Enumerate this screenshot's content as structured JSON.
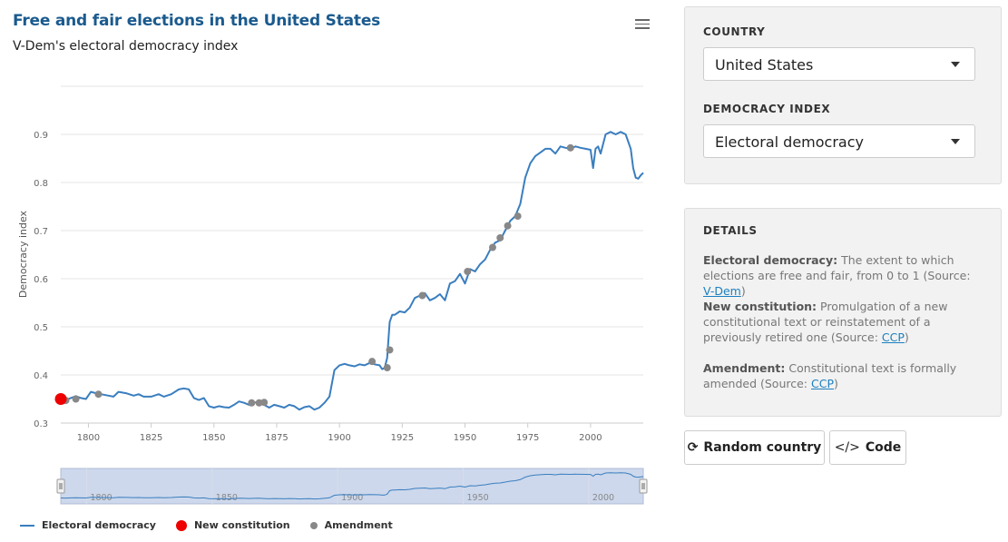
{
  "header": {
    "title": "Free and fair elections in the United States",
    "subtitle": "V-Dem's electoral democracy index"
  },
  "controls": {
    "country_label": "COUNTRY",
    "country_value": "United States",
    "index_label": "DEMOCRACY INDEX",
    "index_value": "Electoral democracy"
  },
  "details": {
    "heading": "DETAILS",
    "items": [
      {
        "term": "Electoral democracy:",
        "text": "The extent to which elections are free and fair, from 0 to 1 (Source: ",
        "link": "V-Dem",
        "end": ")"
      },
      {
        "term": "New constitution:",
        "text": "Promulgation of a new constitutional text or reinstatement of a previously retired one (Source: ",
        "link": "CCP",
        "end": ")"
      },
      {
        "term": "Amendment:",
        "text": "Constitutional text is formally amended (Source: ",
        "link": "CCP",
        "end": ")"
      }
    ]
  },
  "buttons": {
    "random": "Random country",
    "code": "Code"
  },
  "colors": {
    "title": "#1a5a8e",
    "line": "#3a7ebf",
    "new_constitution": "#ee0000",
    "amendment": "#888888",
    "navigator_fill": "#c8d4ea"
  },
  "chart_data": {
    "type": "line",
    "title": "Free and fair elections in the United States",
    "subtitle": "V-Dem's electoral democracy index",
    "ylabel": "Democracy index",
    "xlabel": "",
    "xlim": [
      1789,
      2021
    ],
    "ylim": [
      0.3,
      1.0
    ],
    "y_ticks": [
      0.3,
      0.4,
      0.5,
      0.6,
      0.7,
      0.8,
      0.9
    ],
    "x_ticks": [
      1800,
      1825,
      1850,
      1875,
      1900,
      1925,
      1950,
      1975,
      2000
    ],
    "navigator_ticks": [
      1800,
      1850,
      1900,
      1950,
      2000
    ],
    "grid": true,
    "legend_position": "bottom-left",
    "series": [
      {
        "name": "Electoral democracy",
        "x": [
          1789,
          1791,
          1793,
          1795,
          1797,
          1799,
          1801,
          1803,
          1805,
          1808,
          1810,
          1812,
          1815,
          1818,
          1820,
          1822,
          1825,
          1828,
          1830,
          1833,
          1836,
          1838,
          1840,
          1842,
          1844,
          1846,
          1848,
          1850,
          1852,
          1854,
          1856,
          1858,
          1860,
          1862,
          1864,
          1866,
          1868,
          1870,
          1872,
          1874,
          1876,
          1878,
          1880,
          1882,
          1884,
          1886,
          1888,
          1890,
          1892,
          1894,
          1896,
          1898,
          1900,
          1902,
          1904,
          1906,
          1908,
          1910,
          1912,
          1914,
          1916,
          1917,
          1918,
          1919,
          1920,
          1921,
          1922,
          1924,
          1926,
          1928,
          1930,
          1932,
          1934,
          1936,
          1938,
          1940,
          1942,
          1944,
          1946,
          1948,
          1950,
          1952,
          1954,
          1956,
          1958,
          1960,
          1962,
          1964,
          1966,
          1968,
          1970,
          1972,
          1974,
          1976,
          1978,
          1980,
          1982,
          1984,
          1986,
          1988,
          1990,
          1992,
          1994,
          1996,
          1998,
          2000,
          2001,
          2002,
          2003,
          2004,
          2006,
          2008,
          2010,
          2012,
          2014,
          2016,
          2017,
          2018,
          2019,
          2020,
          2021
        ],
        "values": [
          0.35,
          0.348,
          0.352,
          0.356,
          0.352,
          0.35,
          0.365,
          0.362,
          0.36,
          0.357,
          0.355,
          0.365,
          0.362,
          0.357,
          0.36,
          0.355,
          0.355,
          0.36,
          0.355,
          0.36,
          0.37,
          0.372,
          0.37,
          0.352,
          0.348,
          0.352,
          0.335,
          0.332,
          0.335,
          0.333,
          0.332,
          0.338,
          0.345,
          0.342,
          0.338,
          0.342,
          0.345,
          0.338,
          0.332,
          0.338,
          0.335,
          0.332,
          0.338,
          0.335,
          0.328,
          0.333,
          0.335,
          0.328,
          0.332,
          0.342,
          0.355,
          0.41,
          0.42,
          0.423,
          0.42,
          0.418,
          0.422,
          0.42,
          0.425,
          0.422,
          0.42,
          0.412,
          0.415,
          0.435,
          0.51,
          0.525,
          0.525,
          0.532,
          0.53,
          0.54,
          0.56,
          0.565,
          0.57,
          0.555,
          0.56,
          0.568,
          0.555,
          0.59,
          0.595,
          0.61,
          0.59,
          0.62,
          0.615,
          0.63,
          0.64,
          0.66,
          0.675,
          0.68,
          0.7,
          0.72,
          0.73,
          0.755,
          0.81,
          0.84,
          0.855,
          0.862,
          0.87,
          0.87,
          0.86,
          0.875,
          0.872,
          0.87,
          0.875,
          0.872,
          0.87,
          0.868,
          0.83,
          0.87,
          0.875,
          0.86,
          0.9,
          0.905,
          0.9,
          0.905,
          0.9,
          0.87,
          0.83,
          0.81,
          0.808,
          0.815,
          0.82
        ]
      },
      {
        "name": "New constitution",
        "x": [
          1789
        ],
        "values": [
          0.35
        ]
      },
      {
        "name": "Amendment",
        "x": [
          1791,
          1795,
          1804,
          1865,
          1868,
          1870,
          1913,
          1919,
          1920,
          1933,
          1951,
          1961,
          1964,
          1967,
          1971,
          1992
        ],
        "values": [
          0.347,
          0.35,
          0.36,
          0.342,
          0.342,
          0.343,
          0.428,
          0.415,
          0.452,
          0.565,
          0.615,
          0.665,
          0.685,
          0.71,
          0.73,
          0.872
        ]
      }
    ]
  }
}
